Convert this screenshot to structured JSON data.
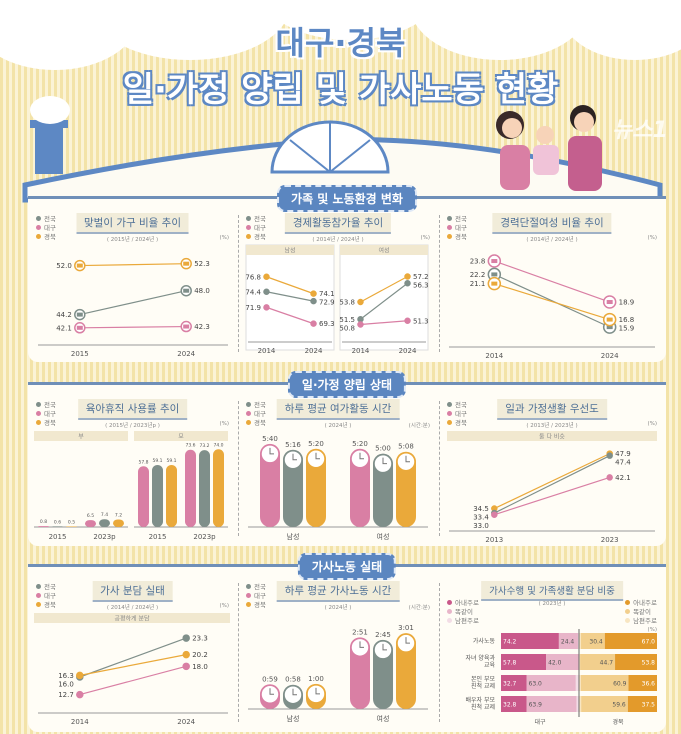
{
  "header": {
    "title_line1": "대구·경북",
    "title_line2": "일·가정 양립 및 가사노동 현황"
  },
  "colors": {
    "전국": "#7f8f8a",
    "대구": "#d97fa4",
    "경북": "#eaa93a",
    "accent": "#5b86c0"
  },
  "legend": [
    "전국",
    "대구",
    "경북"
  ],
  "sections": [
    "가족 및 노동환경 변화",
    "일·가정 양립 상태",
    "가사노동 실태"
  ],
  "watermark": "뉴스1",
  "chart_data": [
    {
      "id": "dual",
      "type": "line",
      "title": "맞벌이 가구 비율 추이",
      "period": "( 2015년 / 2024년 )",
      "unit": "(%)",
      "x": [
        "2015",
        "2024"
      ],
      "ylim": [
        40,
        54
      ],
      "series": [
        {
          "name": "경북",
          "values": [
            52.0,
            52.3
          ]
        },
        {
          "name": "전국",
          "values": [
            44.2,
            48.0
          ]
        },
        {
          "name": "대구",
          "values": [
            42.1,
            42.3
          ]
        }
      ]
    },
    {
      "id": "lfp",
      "type": "line",
      "title": "경제활동참가율 추이",
      "period": "( 2014년 / 2024년 )",
      "unit": "(%)",
      "panels": [
        {
          "label": "남성",
          "x": [
            "2014",
            "2024"
          ],
          "ylim": [
            67,
            79
          ],
          "series": [
            {
              "name": "경북",
              "values": [
                76.8,
                74.1
              ]
            },
            {
              "name": "전국",
              "values": [
                74.4,
                72.9
              ]
            },
            {
              "name": "대구",
              "values": [
                71.9,
                69.3
              ]
            }
          ]
        },
        {
          "label": "여성",
          "x": [
            "2014",
            "2024"
          ],
          "ylim": [
            49,
            59
          ],
          "series": [
            {
              "name": "경북",
              "values": [
                53.8,
                57.2
              ]
            },
            {
              "name": "전국",
              "values": [
                51.5,
                56.3
              ]
            },
            {
              "name": "대구",
              "values": [
                50.8,
                51.3
              ]
            }
          ]
        }
      ]
    },
    {
      "id": "career",
      "type": "line",
      "title": "경력단절여성 비율 추이",
      "period": "( 2014년 / 2024년 )",
      "unit": "(%)",
      "x": [
        "2014",
        "2024"
      ],
      "ylim": [
        14,
        25
      ],
      "series": [
        {
          "name": "대구",
          "values": [
            23.8,
            18.9
          ]
        },
        {
          "name": "전국",
          "values": [
            22.2,
            15.9
          ]
        },
        {
          "name": "경북",
          "values": [
            21.1,
            16.8
          ]
        }
      ]
    },
    {
      "id": "leave",
      "type": "bar",
      "title": "육아휴직 사용률 추이",
      "period": "( 2015년 / 2023년p )",
      "unit": "(%)",
      "panels": [
        {
          "label": "부",
          "categories": [
            "2015",
            "2023p"
          ],
          "ylim": [
            0,
            80
          ],
          "series": [
            {
              "name": "대구",
              "values": [
                0.8,
                6.5
              ]
            },
            {
              "name": "전국",
              "values": [
                0.6,
                7.4
              ]
            },
            {
              "name": "경북",
              "values": [
                0.5,
                7.2
              ]
            }
          ]
        },
        {
          "label": "모",
          "categories": [
            "2015",
            "2023p"
          ],
          "ylim": [
            0,
            80
          ],
          "series": [
            {
              "name": "대구",
              "values": [
                57.8,
                73.6
              ]
            },
            {
              "name": "전국",
              "values": [
                59.1,
                73.2
              ]
            },
            {
              "name": "경북",
              "values": [
                59.1,
                74.0
              ]
            }
          ]
        }
      ]
    },
    {
      "id": "leisure",
      "type": "bar",
      "title": "하루 평균 여가활동 시간",
      "period": "( 2024년 )",
      "unit": "(시간:분)",
      "categories": [
        "남성",
        "여성"
      ],
      "ylim": [
        "0:00",
        "6:00"
      ],
      "series": [
        {
          "name": "대구",
          "values": [
            "5:40",
            "5:20"
          ]
        },
        {
          "name": "전국",
          "values": [
            "5:16",
            "5:00"
          ]
        },
        {
          "name": "경북",
          "values": [
            "5:20",
            "5:08"
          ]
        }
      ]
    },
    {
      "id": "priority",
      "type": "line",
      "title": "일과 가정생활 우선도",
      "period": "( 2013년 / 2023년 )",
      "unit": "(%)",
      "band": "둘 다 비슷",
      "x": [
        "2013",
        "2023"
      ],
      "ylim": [
        30,
        50
      ],
      "series": [
        {
          "name": "경북",
          "values": [
            34.5,
            47.9
          ]
        },
        {
          "name": "전국",
          "values": [
            33.4,
            47.4
          ]
        },
        {
          "name": "대구",
          "values": [
            33.0,
            42.1
          ]
        }
      ]
    },
    {
      "id": "share",
      "type": "line",
      "title": "가사 분담 실태",
      "period": "( 2014년 / 2024년 )",
      "unit": "(%)",
      "band": "공평하게 분담",
      "x": [
        "2014",
        "2024"
      ],
      "ylim": [
        10,
        25
      ],
      "series": [
        {
          "name": "전국",
          "values": [
            16.0,
            23.3
          ]
        },
        {
          "name": "경북",
          "values": [
            16.3,
            20.2
          ]
        },
        {
          "name": "대구",
          "values": [
            12.7,
            18.0
          ]
        }
      ]
    },
    {
      "id": "housework",
      "type": "bar",
      "title": "하루 평균 가사노동 시간",
      "period": "( 2024년 )",
      "unit": "(시간:분)",
      "categories": [
        "남성",
        "여성"
      ],
      "ylim": [
        "0:00",
        "3:30"
      ],
      "series": [
        {
          "name": "대구",
          "values": [
            "0:59",
            "2:51"
          ]
        },
        {
          "name": "전국",
          "values": [
            "0:58",
            "2:45"
          ]
        },
        {
          "name": "경북",
          "values": [
            "1:00",
            "3:01"
          ]
        }
      ]
    },
    {
      "id": "split",
      "type": "bar",
      "stacked": true,
      "title": "가사수행 및 가족생활 분담 비중",
      "period": "( 2023년 )",
      "unit": "(%)",
      "legend_left": [
        "아내주로",
        "똑같이",
        "남편주로"
      ],
      "legend_right": [
        "아내주로",
        "똑같이",
        "남편주로"
      ],
      "categories": [
        "가사노동",
        "자녀 양육과 교육",
        "본인 부모 친척 교제",
        "배우자 부모 친척 교제"
      ],
      "groups": [
        {
          "name": "대구",
          "colors": [
            "#c9588a",
            "#e8b5c9",
            "#f3dde6"
          ],
          "series": [
            {
              "name": "아내주로",
              "values": [
                74.2,
                57.8,
                32.7,
                32.8
              ]
            },
            {
              "name": "똑같이",
              "values": [
                24.4,
                42.0,
                63.0,
                63.9
              ]
            }
          ]
        },
        {
          "name": "경북",
          "colors": [
            "#e39a2b",
            "#f2cf8d",
            "#f8e6c2"
          ],
          "series": [
            {
              "name": "아내주로",
              "values": [
                67.0,
                53.8,
                36.6,
                37.5
              ]
            },
            {
              "name": "똑같이",
              "values": [
                30.4,
                44.7,
                60.9,
                59.6
              ]
            }
          ]
        }
      ]
    }
  ]
}
